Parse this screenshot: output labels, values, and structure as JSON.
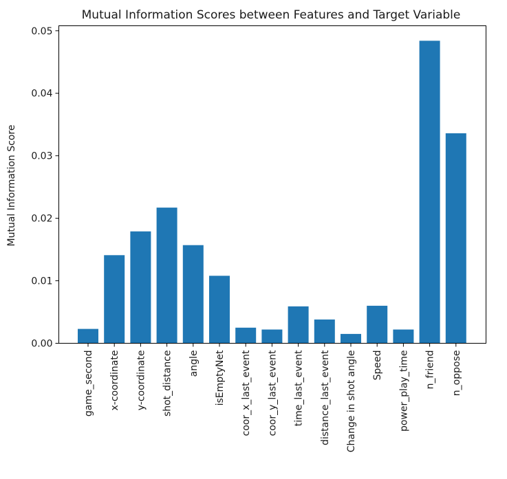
{
  "chart_data": {
    "type": "bar",
    "title": "Mutual Information Scores between Features and Target Variable",
    "xlabel": "",
    "ylabel": "Mutual Information Score",
    "ylim": [
      0,
      0.0508
    ],
    "yticks": [
      "0.00",
      "0.01",
      "0.02",
      "0.03",
      "0.04",
      "0.05"
    ],
    "ytick_values": [
      0,
      0.01,
      0.02,
      0.03,
      0.04,
      0.05
    ],
    "categories": [
      "game_second",
      "x-coordinate",
      "y-coordinate",
      "shot_distance",
      "angle",
      "isEmptyNet",
      "coor_x_last_event",
      "coor_y_last_event",
      "time_last_event",
      "distance_last_event",
      "Change in shot angle",
      "Speed",
      "power_play_time",
      "n_friend",
      "n_oppose"
    ],
    "values": [
      0.0023,
      0.0141,
      0.0179,
      0.0217,
      0.0157,
      0.0108,
      0.0025,
      0.0022,
      0.0059,
      0.0038,
      0.0015,
      0.006,
      0.0022,
      0.0484,
      0.0336
    ],
    "grid": false,
    "bar_color": "#1f77b4"
  }
}
